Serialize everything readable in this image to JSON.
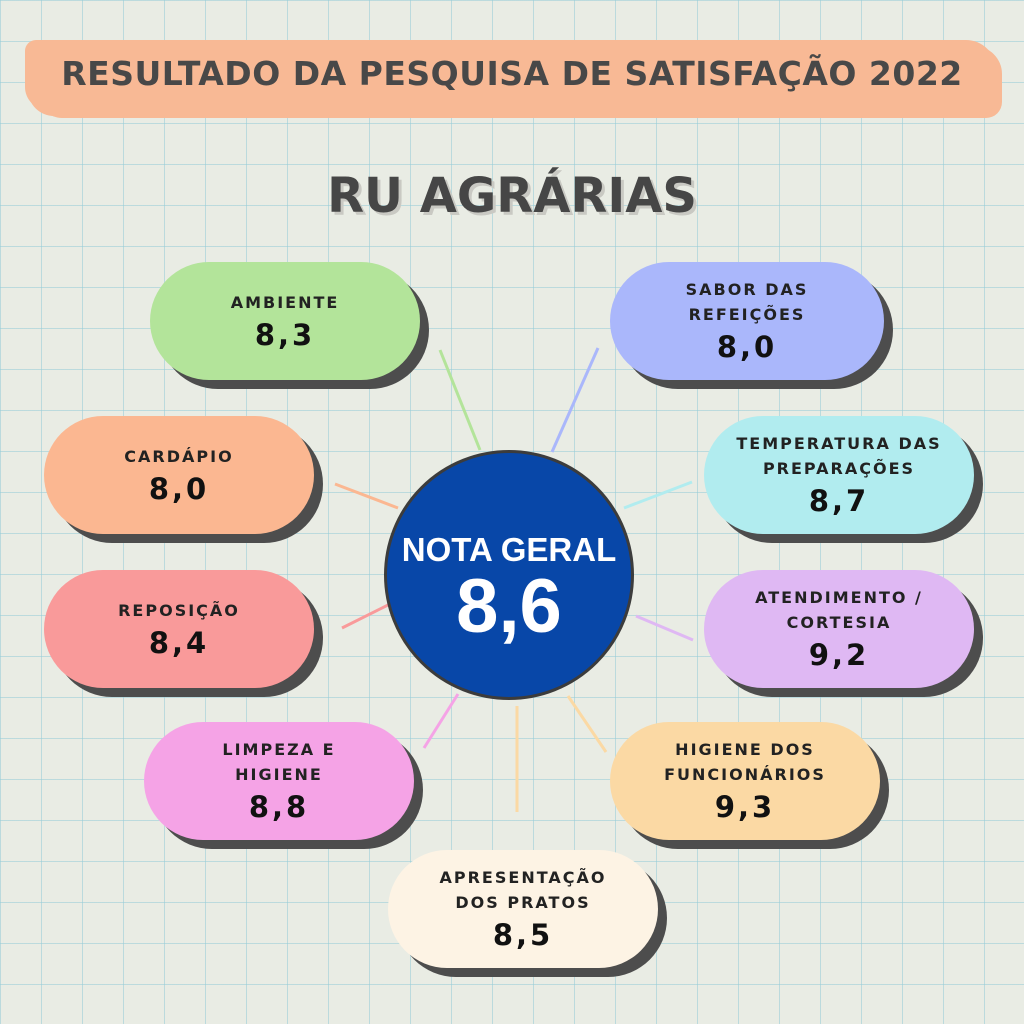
{
  "title": "RESULTADO DA PESQUISA DE SATISFAÇÃO 2022",
  "subtitle": "RU AGRÁRIAS",
  "overall": {
    "label": "NOTA GERAL",
    "value": "8,6",
    "color": "#0847a8"
  },
  "items": [
    {
      "label": "AMBIENTE",
      "value": "8,3",
      "color": "#b3e49a"
    },
    {
      "label": "SABOR DAS REFEIÇÕES",
      "value": "8,0",
      "color": "#aab7fb"
    },
    {
      "label": "CARDÁPIO",
      "value": "8,0",
      "color": "#fbb791"
    },
    {
      "label": "TEMPERATURA DAS\nPREPARAÇÕES",
      "value": "8,7",
      "color": "#b1ecef"
    },
    {
      "label": "REPOSIÇÃO",
      "value": "8,4",
      "color": "#f99a9a"
    },
    {
      "label": "ATENDIMENTO /\nCORTESIA",
      "value": "9,2",
      "color": "#dfb8f3"
    },
    {
      "label": "LIMPEZA E\nHIGIENE",
      "value": "8,8",
      "color": "#f5a3e6"
    },
    {
      "label": "HIGIENE DOS\nFUNCIONÁRIOS",
      "value": "9,3",
      "color": "#fbd9a4"
    },
    {
      "label": "APRESENTAÇÃO\nDOS PRATOS",
      "value": "8,5",
      "color": "#fdf3e4"
    }
  ]
}
